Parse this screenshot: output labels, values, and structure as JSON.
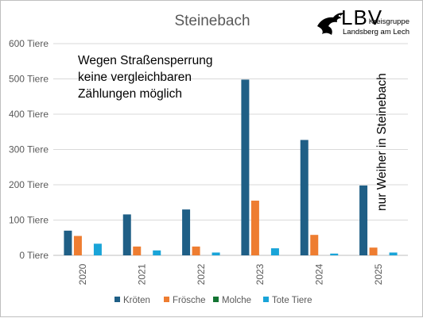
{
  "chart_data": {
    "type": "bar",
    "title": "Steinebach",
    "categories": [
      "2020",
      "2021",
      "2022",
      "2023",
      "2024",
      "2025"
    ],
    "series": [
      {
        "name": "Kröten",
        "color": "#1f5f86",
        "values": [
          70,
          116,
          130,
          498,
          327,
          198
        ]
      },
      {
        "name": "Frösche",
        "color": "#ee7d31",
        "values": [
          55,
          25,
          25,
          155,
          58,
          22
        ]
      },
      {
        "name": "Molche",
        "color": "#137433",
        "values": [
          0,
          0,
          0,
          0,
          0,
          0
        ]
      },
      {
        "name": "Tote Tiere",
        "color": "#19a4d8",
        "values": [
          33,
          14,
          8,
          20,
          5,
          8
        ]
      }
    ],
    "ylim": [
      0,
      600
    ],
    "yticks": [
      0,
      100,
      200,
      300,
      400,
      500,
      600
    ],
    "ytick_labels": [
      "0 Tiere",
      "100 Tiere",
      "200 Tiere",
      "300 Tiere",
      "400 Tiere",
      "500 Tiere",
      "600 Tiere"
    ],
    "grid": true,
    "legend_position": "bottom",
    "annotations": {
      "left_lines": [
        "Wegen Straßensperrung",
        "keine vergleichbaren",
        "Zählungen möglich"
      ],
      "right_vertical": "nur Weiher in Steinebach"
    }
  },
  "logo": {
    "name": "LBV",
    "line1": "Kreisgruppe",
    "line2": "Landsberg am Lech",
    "icon": "bird-logo-icon"
  }
}
